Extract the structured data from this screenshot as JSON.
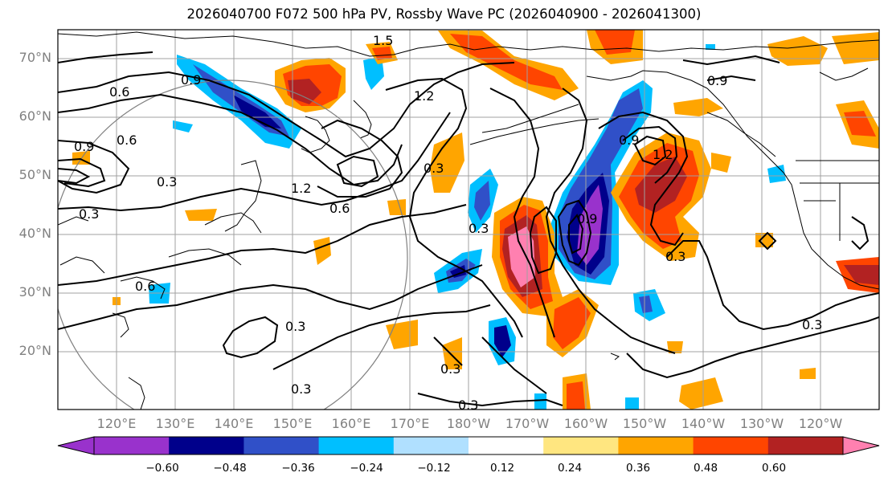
{
  "title": "2026040700 F072 500 hPa PV, Rossby Wave PC (2026040900 - 2026041300)",
  "lat_labels": [
    "70°N",
    "60°N",
    "50°N",
    "40°N",
    "30°N",
    "20°N"
  ],
  "lon_labels": [
    "120°E",
    "130°E",
    "140°E",
    "150°E",
    "160°E",
    "170°E",
    "180°W",
    "170°W",
    "160°W",
    "150°W",
    "140°W",
    "130°W",
    "120°W"
  ],
  "colorbar": {
    "ticks": [
      "−0.60",
      "−0.48",
      "−0.36",
      "−0.24",
      "−0.12",
      "0.12",
      "0.24",
      "0.36",
      "0.48",
      "0.60"
    ],
    "colors": [
      "#9932cc",
      "#00008b",
      "#3050c8",
      "#00bfff",
      "#b0e0ff",
      "#ffffff",
      "#ffe680",
      "#ffa500",
      "#ff4500",
      "#b22222",
      "#ff80b0"
    ]
  },
  "contour_labels": [
    "1.5",
    "1.2",
    "0.9",
    "0.6",
    "0.3",
    "0.9",
    "0.6",
    "0.3",
    "0.6",
    "1.2",
    "0.9",
    "0.3",
    "0.3",
    "0.3",
    "0.3",
    "0.6",
    "0.9",
    "1.2",
    "0.3",
    "0.3",
    "0.3",
    "0.3",
    "0.9"
  ]
}
